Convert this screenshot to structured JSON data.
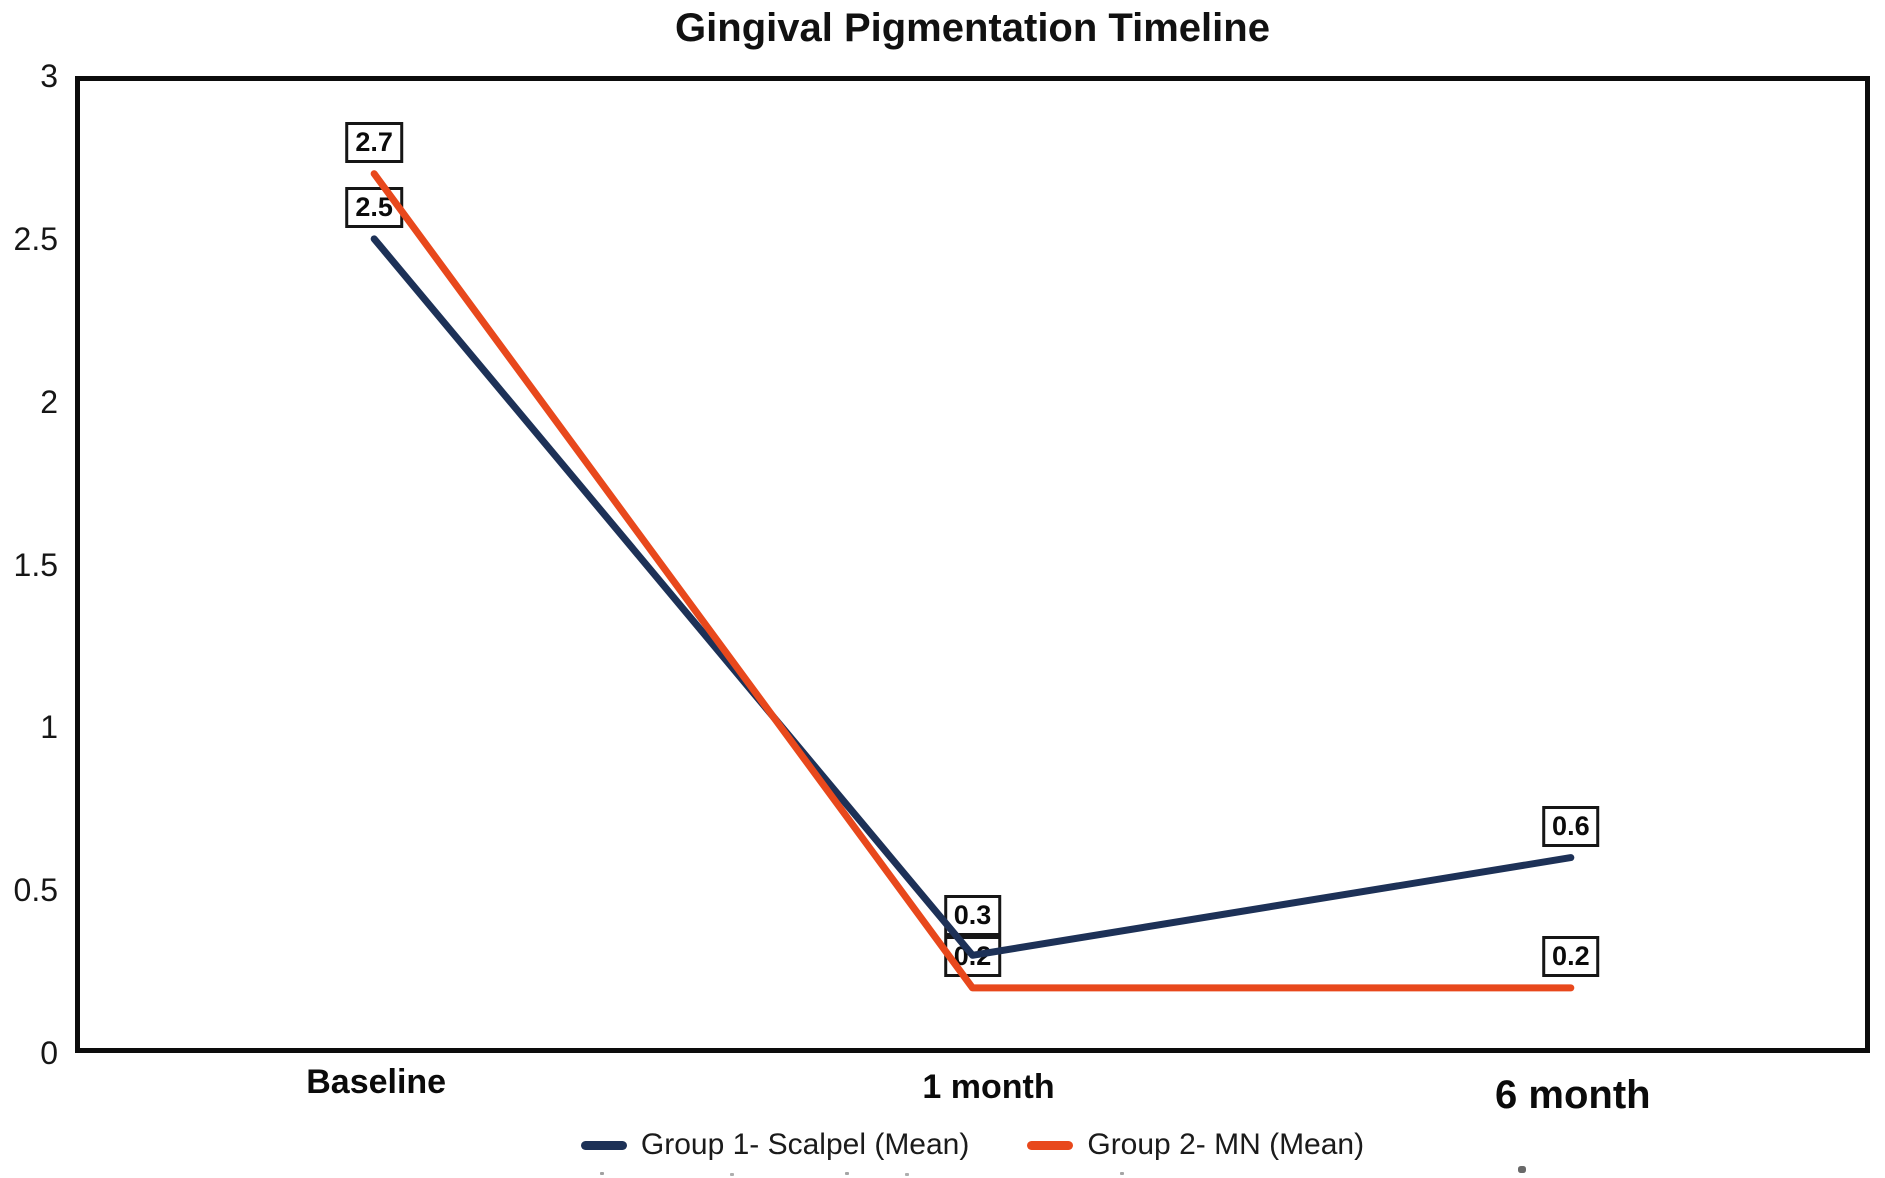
{
  "title": "Gingival Pigmentation Timeline",
  "chart_data": {
    "type": "line",
    "title": "Gingival Pigmentation Timeline",
    "categories": [
      "Baseline",
      "1 month",
      "6 month"
    ],
    "series": [
      {
        "name": "Group 1- Scalpel (Mean)",
        "color": "#1d3157",
        "values": [
          2.5,
          0.3,
          0.6
        ]
      },
      {
        "name": "Group 2- MN (Mean)",
        "color": "#e8481c",
        "values": [
          2.7,
          0.2,
          0.2
        ]
      }
    ],
    "data_labels": [
      "2.7",
      "2.5",
      "0.3",
      "0.2",
      "0.6",
      "0.2"
    ],
    "xlabel": "",
    "ylabel": "",
    "ylim": [
      0,
      3
    ],
    "yticks": [
      0,
      0.5,
      1,
      1.5,
      2,
      2.5,
      3
    ],
    "ytick_labels": [
      "0",
      "0.5",
      "1",
      "1.5",
      "2",
      "2.5",
      "3"
    ],
    "grid": false,
    "legend_position": "bottom"
  },
  "legend": {
    "items": [
      {
        "label": "Group 1- Scalpel (Mean)",
        "color": "#1d3157"
      },
      {
        "label": "Group 2- MN (Mean)",
        "color": "#e8481c"
      }
    ]
  }
}
